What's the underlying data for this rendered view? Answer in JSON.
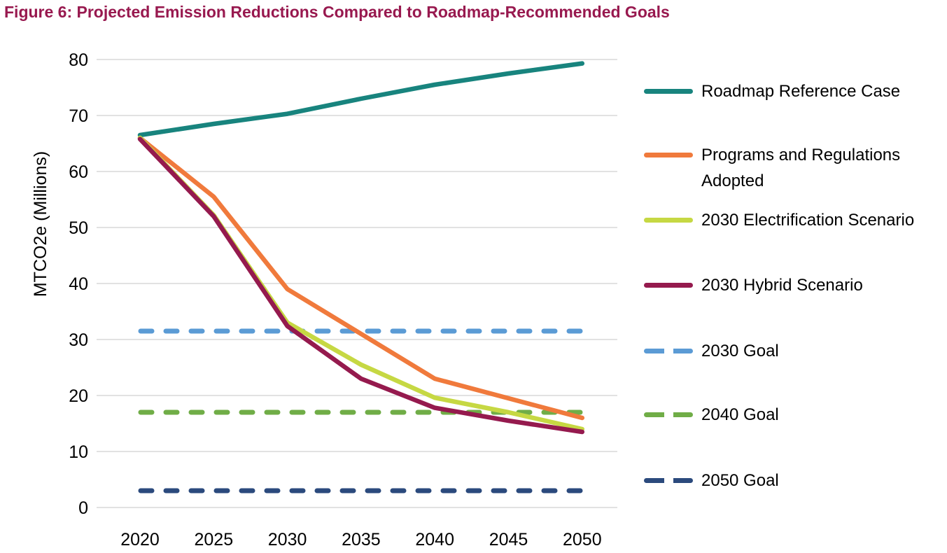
{
  "chart_data": {
    "type": "line",
    "title": "Figure 6: Projected Emission Reductions Compared to Roadmap-Recommended Goals",
    "title_color": "#98194F",
    "xlabel": "",
    "ylabel": "MTCO2e (Millions)",
    "x": [
      2020,
      2025,
      2030,
      2035,
      2040,
      2045,
      2050
    ],
    "ylim": [
      0,
      80
    ],
    "yticks": [
      0,
      10,
      20,
      30,
      40,
      50,
      60,
      70,
      80
    ],
    "grid": "horizontal",
    "gridline_color": "#D9D9D9",
    "legend_position": "right",
    "series": [
      {
        "name": "Roadmap Reference Case",
        "color": "#18847E",
        "style": "solid",
        "values": [
          66.5,
          68.5,
          70.3,
          73.0,
          75.5,
          77.5,
          79.3
        ]
      },
      {
        "name": "Programs and Regulations Adopted",
        "color": "#F07A3C",
        "style": "solid",
        "values": [
          66.0,
          55.5,
          39.0,
          31.0,
          23.0,
          19.5,
          16.0
        ]
      },
      {
        "name": "2030 Electrification Scenario",
        "color": "#C6D843",
        "style": "solid",
        "values": [
          66.0,
          52.2,
          33.0,
          25.5,
          19.6,
          17.0,
          14.0
        ]
      },
      {
        "name": "2030 Hybrid Scenario",
        "color": "#951A4E",
        "style": "solid",
        "values": [
          65.8,
          52.0,
          32.4,
          23.0,
          17.8,
          15.5,
          13.5
        ]
      },
      {
        "name": "2030 Goal",
        "color": "#5B9BD5",
        "style": "dashed",
        "values": [
          31.5,
          31.5,
          31.5,
          31.5,
          31.5,
          31.5,
          31.5
        ]
      },
      {
        "name": "2040 Goal",
        "color": "#70AD47",
        "style": "dashed",
        "values": [
          17.0,
          17.0,
          17.0,
          17.0,
          17.0,
          17.0,
          17.0
        ]
      },
      {
        "name": "2050 Goal",
        "color": "#2B4A7D",
        "style": "dashed",
        "values": [
          3.0,
          3.0,
          3.0,
          3.0,
          3.0,
          3.0,
          3.0
        ]
      }
    ]
  }
}
